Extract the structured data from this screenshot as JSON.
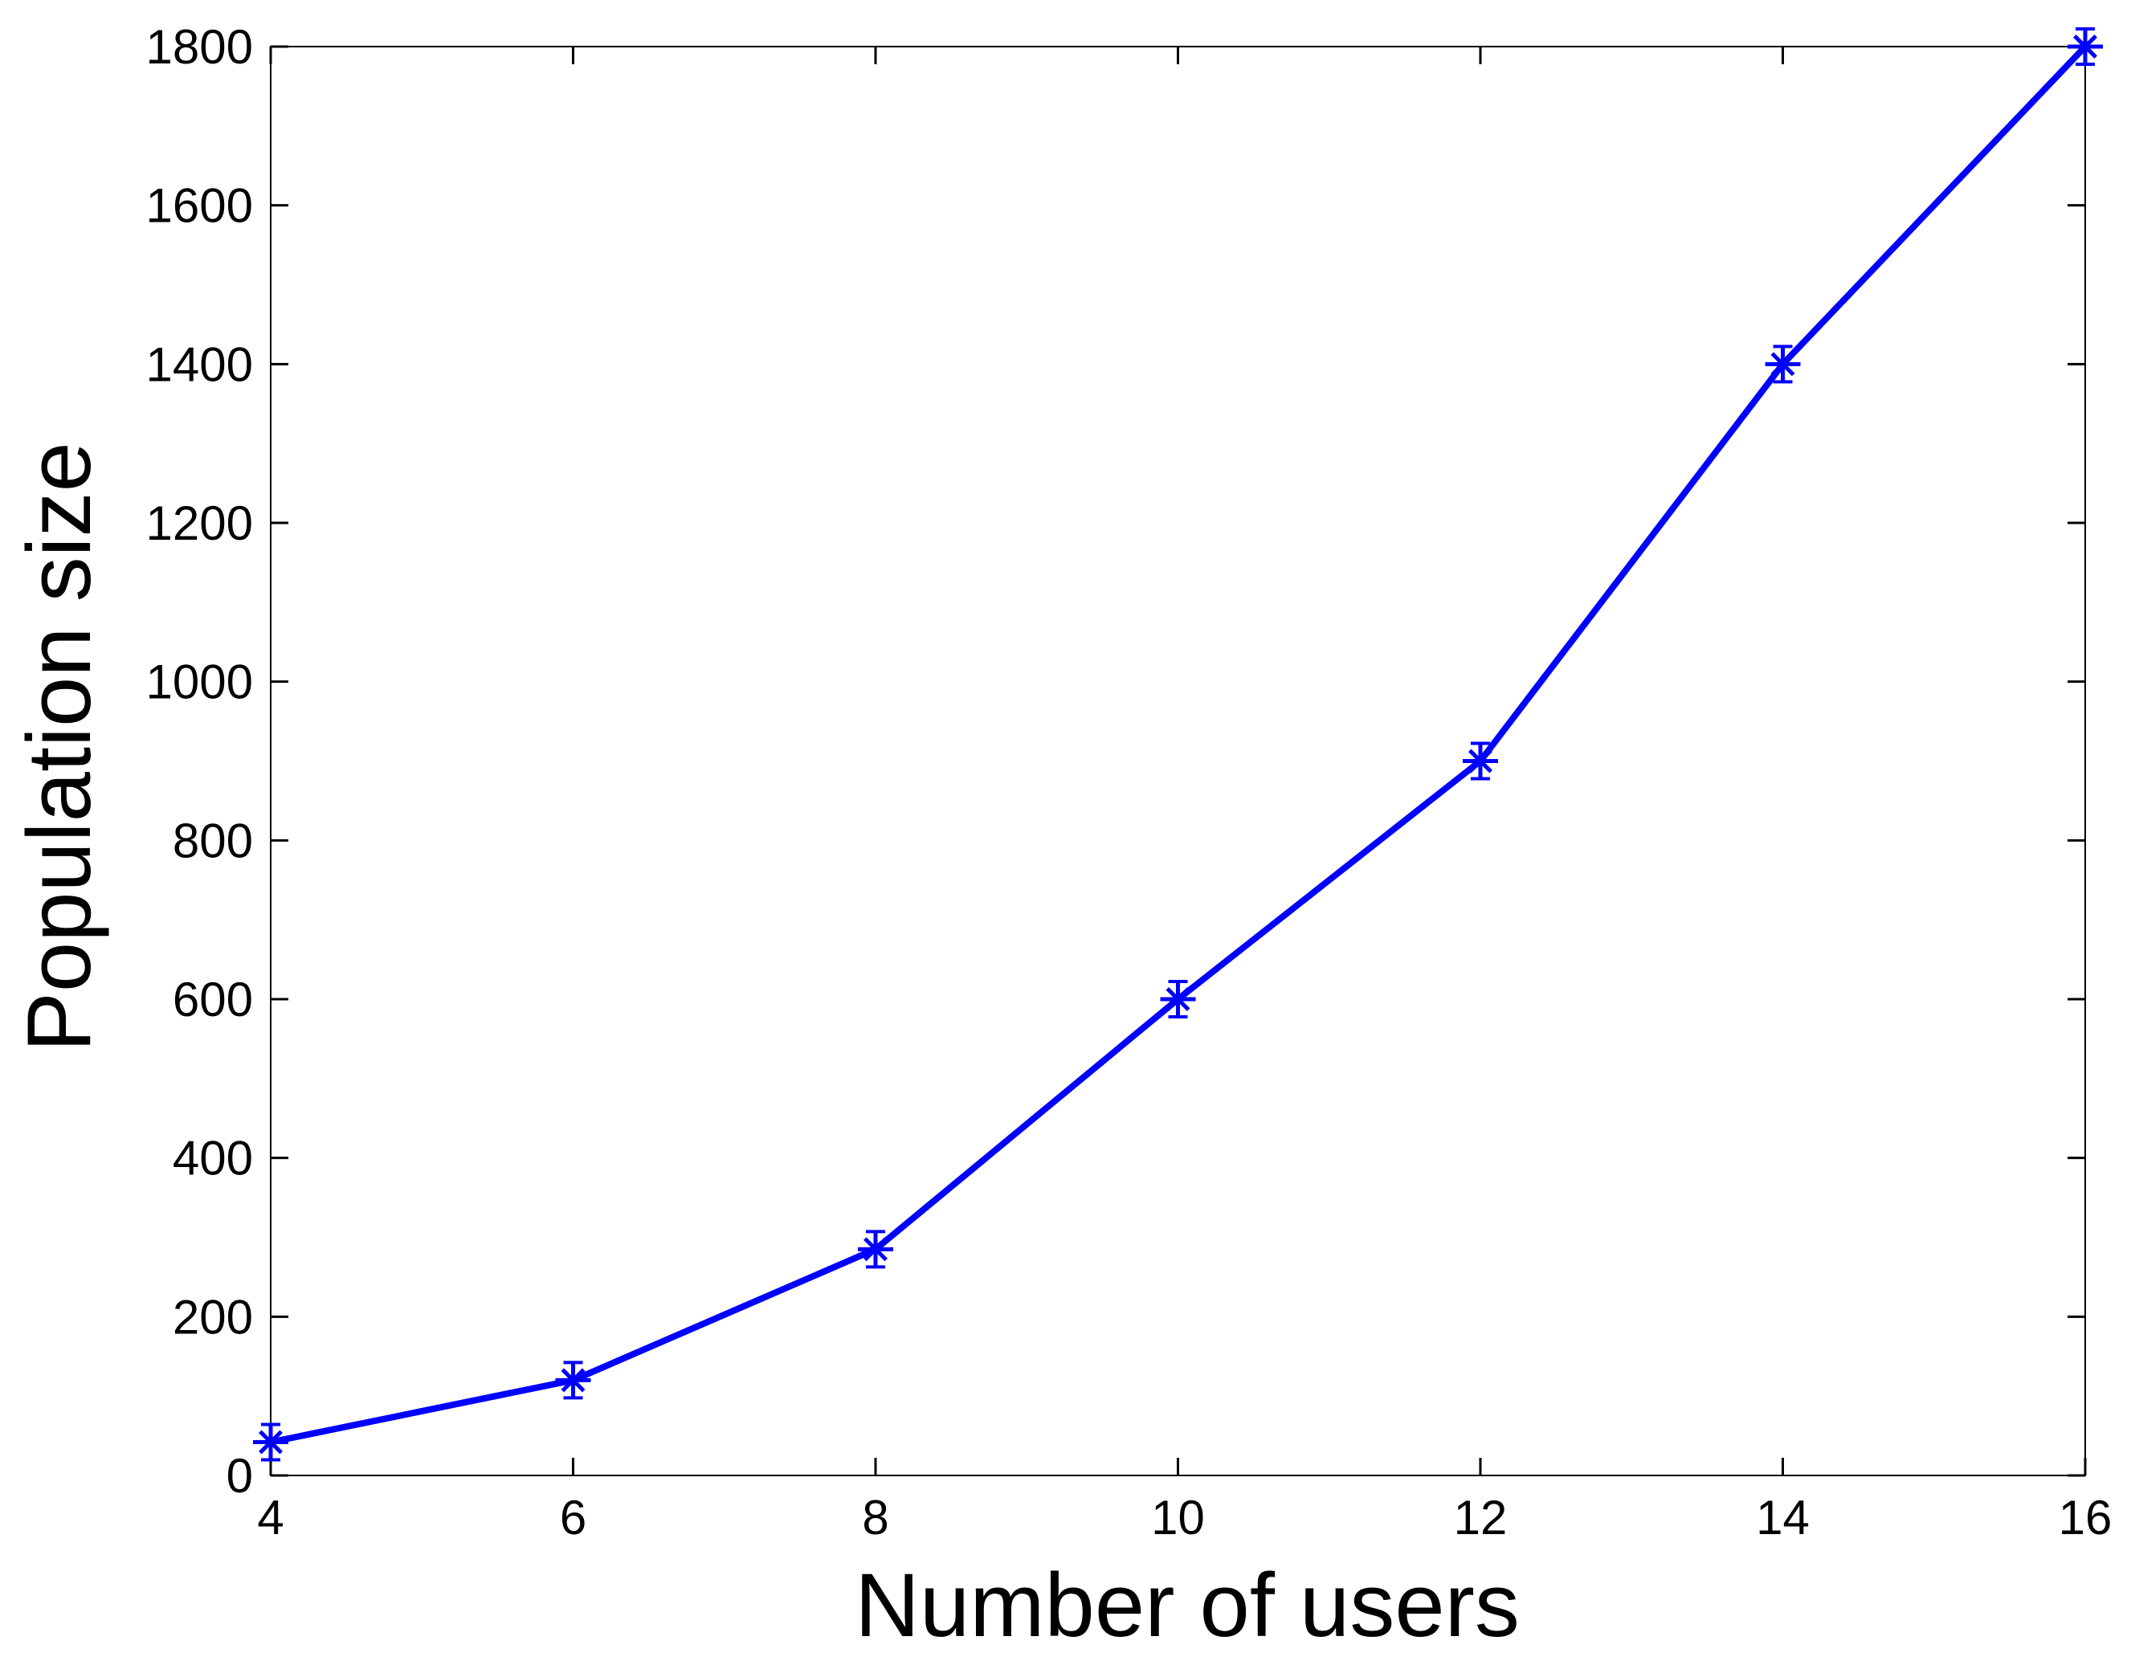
{
  "chart_data": {
    "type": "line",
    "title": "",
    "xlabel": "Number of users",
    "ylabel": "Population size",
    "xlim": [
      4,
      16
    ],
    "ylim": [
      0,
      1800
    ],
    "xticks": [
      4,
      6,
      8,
      10,
      12,
      14,
      16
    ],
    "yticks": [
      0,
      200,
      400,
      600,
      800,
      1000,
      1200,
      1400,
      1600,
      1800
    ],
    "x_tick_labels": [
      "4",
      "6",
      "8",
      "10",
      "12",
      "14",
      "16"
    ],
    "y_tick_labels": [
      "0",
      "200",
      "400",
      "600",
      "800",
      "1000",
      "1200",
      "1400",
      "1600",
      "1800"
    ],
    "grid": false,
    "legend": "none",
    "series": [
      {
        "color": "#0000ff",
        "marker": "star",
        "x": [
          4,
          6,
          8,
          10,
          12,
          14,
          16
        ],
        "y": [
          42,
          120,
          285,
          600,
          900,
          1400,
          1800
        ]
      }
    ]
  }
}
